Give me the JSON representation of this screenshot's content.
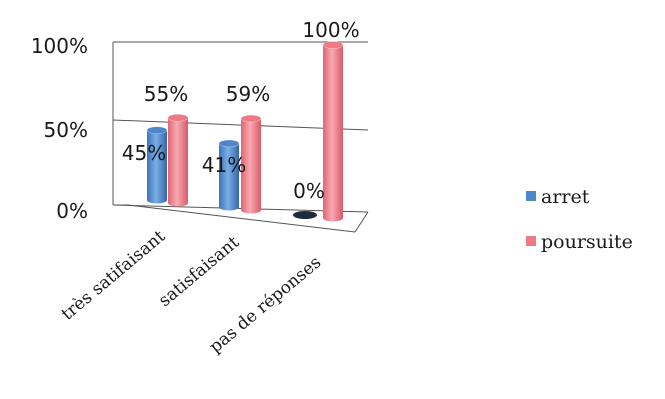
{
  "chart_data": {
    "type": "bar",
    "style": "3d-cylinder",
    "categories": [
      "très satifaisant",
      "satisfaisant",
      "pas de réponses"
    ],
    "series": [
      {
        "name": "arret",
        "values": [
          45,
          41,
          0
        ],
        "labels": [
          "45%",
          "41%",
          "0%"
        ],
        "color": "#4d86c9"
      },
      {
        "name": "poursuite",
        "values": [
          55,
          59,
          100
        ],
        "labels": [
          "55%",
          "59%",
          "100%"
        ],
        "color": "#ee7a86"
      }
    ],
    "y_ticks": [
      "0%",
      "50%",
      "100%"
    ],
    "ylim": [
      0,
      100
    ],
    "grid": true,
    "legend_position": "right"
  }
}
